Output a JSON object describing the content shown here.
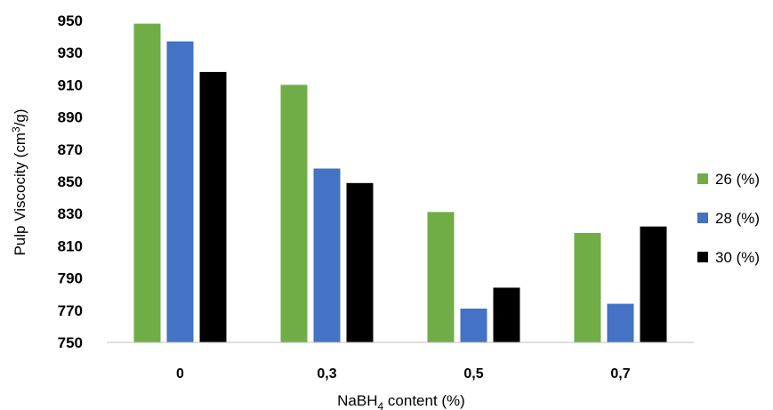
{
  "chart_data": {
    "type": "bar",
    "categories": [
      "0",
      "0,3",
      "0,5",
      "0,7"
    ],
    "series": [
      {
        "name": "26 (%)",
        "color": "#70ad47",
        "values": [
          948,
          910,
          831,
          818
        ]
      },
      {
        "name": "28 (%)",
        "color": "#4472c4",
        "values": [
          937,
          858,
          771,
          774
        ]
      },
      {
        "name": "30 (%)",
        "color": "#000000",
        "values": [
          918,
          849,
          784,
          822
        ]
      }
    ],
    "xlabel": {
      "main": "NaBH",
      "sub": "4",
      "rest": " content (%)"
    },
    "ylabel": {
      "main": "Pulp Viscocity (cm",
      "sup": "3",
      "rest": "/g)"
    },
    "ylim": [
      750,
      950
    ],
    "yticks": [
      "750",
      "770",
      "790",
      "810",
      "830",
      "850",
      "870",
      "890",
      "910",
      "930",
      "950"
    ],
    "grid": false,
    "legend_position": "right"
  }
}
